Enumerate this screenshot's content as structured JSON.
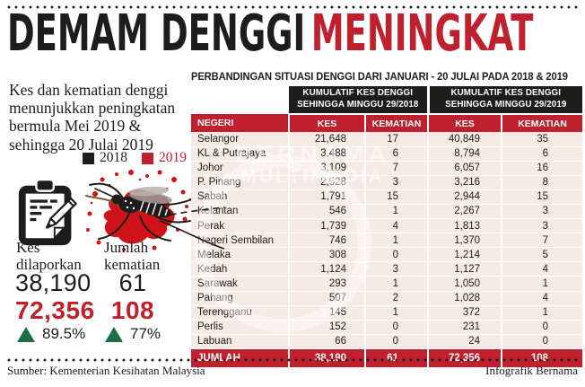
{
  "header": {
    "title_black": "DEMAM DENGGI",
    "title_red": "MENINGKAT"
  },
  "intro_text": "Kes dan kematian denggi menunjukkan peningkatan bermula Mei 2019 & sehingga 20 Julai 2019",
  "legend": {
    "items": [
      {
        "label": "2018",
        "color": "#1d1d1b"
      },
      {
        "label": "2019",
        "color": "#c0202e"
      }
    ]
  },
  "summary": {
    "cases": {
      "icon": "clipboard-icon",
      "label": "Kes dilaporkan",
      "value_2018": "38,190",
      "value_2019": "72,356",
      "change": "89.5%"
    },
    "deaths": {
      "icon": "mosquito-icon",
      "label": "Jumlah kematian",
      "value_2018": "61",
      "value_2019": "108",
      "change": "77%"
    }
  },
  "chart_data": {
    "type": "table",
    "title": "PERBANDINGAN SITUASI DENGGI DARI JANUARI - 20 JULAI PADA 2018 & 2019",
    "group_headers": [
      {
        "line1": "KUMULATIF KES DENGGI",
        "line2": "SEHINGGA MINGGU 29/2018"
      },
      {
        "line1": "KUMULATIF KES DENGGI",
        "line2": "SEHINGGA MINGGU 29/2019"
      }
    ],
    "columns": [
      "NEGERI",
      "KES",
      "KEMATIAN",
      "KES",
      "KEMATIAN"
    ],
    "rows": [
      [
        "Selangor",
        "21,648",
        "17",
        "40,849",
        "35"
      ],
      [
        "KL & Putrajaya",
        "3,488",
        "6",
        "8,794",
        "6"
      ],
      [
        "Johor",
        "3,109",
        "7",
        "6,057",
        "16"
      ],
      [
        "P. Pinang",
        "2,528",
        "3",
        "3,216",
        "8"
      ],
      [
        "Sabah",
        "1,791",
        "15",
        "2,944",
        "15"
      ],
      [
        "Kelantan",
        "546",
        "1",
        "2,267",
        "3"
      ],
      [
        "Perak",
        "1,739",
        "4",
        "1,813",
        "3"
      ],
      [
        "Negeri Sembilan",
        "746",
        "1",
        "1,370",
        "7"
      ],
      [
        "Melaka",
        "308",
        "0",
        "1,214",
        "5"
      ],
      [
        "Kedah",
        "1,124",
        "3",
        "1,127",
        "4"
      ],
      [
        "Sarawak",
        "293",
        "1",
        "1,050",
        "1"
      ],
      [
        "Pahang",
        "507",
        "2",
        "1,028",
        "4"
      ],
      [
        "Terengganu",
        "145",
        "1",
        "372",
        "1"
      ],
      [
        "Perlis",
        "152",
        "0",
        "231",
        "0"
      ],
      [
        "Labuan",
        "66",
        "0",
        "24",
        "0"
      ]
    ],
    "total": [
      "JUMLAH",
      "38,190",
      "61",
      "72,356",
      "108"
    ]
  },
  "watermark": {
    "line1": "BERNAMA",
    "line2": "MULTIMEDIA"
  },
  "footer": {
    "source": "Sumber: Kementerian Kesihatan Malaysia",
    "credit": "Infografik Bernama"
  },
  "colors": {
    "red": "#c0202e",
    "table_pink": "#f6eae6",
    "green": "#1c6f44",
    "black": "#1d1d1b"
  }
}
